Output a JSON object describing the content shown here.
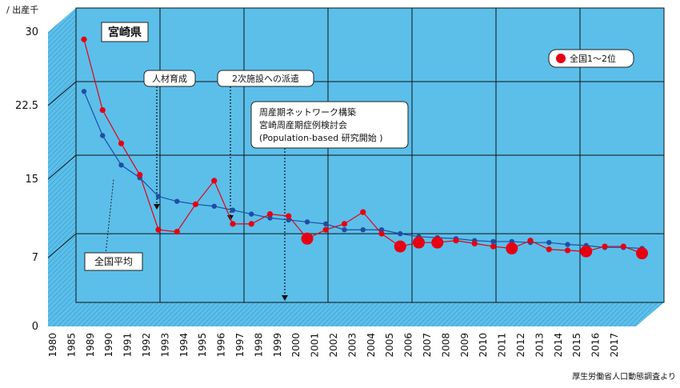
{
  "chart_data": {
    "type": "line",
    "title": "宮崎県",
    "ylabel": "/ 出産千",
    "source": "厚生労働省人口動態調査より",
    "ylim": [
      0,
      30
    ],
    "ytick_values": [
      0,
      7,
      15,
      22.5,
      30
    ],
    "ytick_labels": [
      "0",
      "7",
      "15",
      "22.5",
      "30"
    ],
    "x": [
      "1980",
      "1985",
      "1989",
      "1990",
      "1991",
      "1992",
      "1993",
      "1994",
      "1995",
      "1996",
      "1997",
      "1998",
      "1999",
      "2000",
      "2001",
      "2002",
      "2003",
      "2004",
      "2005",
      "2006",
      "2007",
      "2008",
      "2009",
      "2010",
      "2011",
      "2012",
      "2013",
      "2014",
      "2015",
      "2016",
      "2017"
    ],
    "series": [
      {
        "name": "宮崎県",
        "color": "#e60012",
        "values": [
          26.8,
          19.6,
          16.2,
          13.0,
          7.4,
          7.2,
          10.0,
          12.4,
          8.0,
          8.0,
          9.0,
          8.8,
          6.5,
          7.4,
          8.0,
          9.2,
          7.0,
          5.7,
          6.1,
          6.1,
          6.3,
          6.0,
          5.7,
          5.5,
          6.3,
          5.4,
          5.3,
          5.2,
          5.7,
          5.7,
          5.0
        ],
        "rank_highlight": [
          false,
          false,
          false,
          false,
          false,
          false,
          false,
          false,
          false,
          false,
          false,
          false,
          true,
          false,
          false,
          false,
          false,
          true,
          true,
          true,
          false,
          false,
          false,
          true,
          false,
          false,
          false,
          true,
          false,
          false,
          true
        ]
      },
      {
        "name": "全国平均",
        "color": "#1f4ea3",
        "values": [
          21.5,
          17.0,
          14.0,
          12.7,
          10.8,
          10.3,
          10.0,
          9.8,
          9.4,
          9.0,
          8.6,
          8.4,
          8.2,
          8.0,
          7.4,
          7.4,
          7.4,
          7.0,
          6.7,
          6.6,
          6.5,
          6.3,
          6.2,
          6.2,
          6.1,
          6.1,
          5.9,
          5.8,
          5.6,
          5.6,
          5.5
        ]
      }
    ],
    "legend": {
      "label": "全国1〜2位",
      "marker_color": "#e60012",
      "position": "top-right"
    },
    "annotations": [
      {
        "text": "人材育成",
        "x": "1993"
      },
      {
        "text": "2次施設への派遣",
        "x": "1997"
      },
      {
        "lines": [
          "周産期ネットワーク構築",
          "宮崎周産期症例検討会",
          "(Population-based 研究開始 )"
        ],
        "x": "2000"
      }
    ],
    "national_label": "全国平均"
  }
}
